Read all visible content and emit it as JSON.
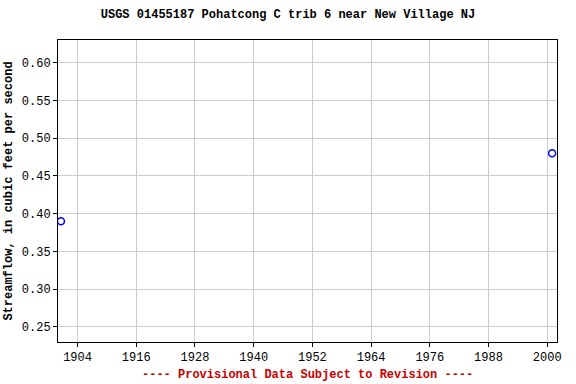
{
  "chart_data": {
    "type": "scatter",
    "title": "USGS 01455187 Pohatcong C trib 6 near New Village NJ",
    "y_label": "Streamflow, in cubic feet per second",
    "x": [
      1900.6,
      2001
    ],
    "values": [
      0.39,
      0.48
    ],
    "color": "#0000ff",
    "marker": "circle-open",
    "xlim": [
      1900,
      2002
    ],
    "xticks": [
      1904,
      1916,
      1928,
      1940,
      1952,
      1964,
      1976,
      1988,
      2000
    ],
    "ylim": [
      0.23,
      0.63
    ],
    "yticks": [
      0.25,
      {
        "value": 0.3,
        "label": "0.30"
      },
      0.35,
      {
        "value": 0.4,
        "label": "0.40"
      },
      0.45,
      {
        "value": 0.5,
        "label": "0.50"
      },
      0.55,
      {
        "value": 0.6,
        "label": "0.60"
      }
    ],
    "grid": true,
    "annotations": [
      {
        "text": "---- Provisional Data Subject to Revision ----",
        "color": "#cc0000"
      }
    ]
  }
}
